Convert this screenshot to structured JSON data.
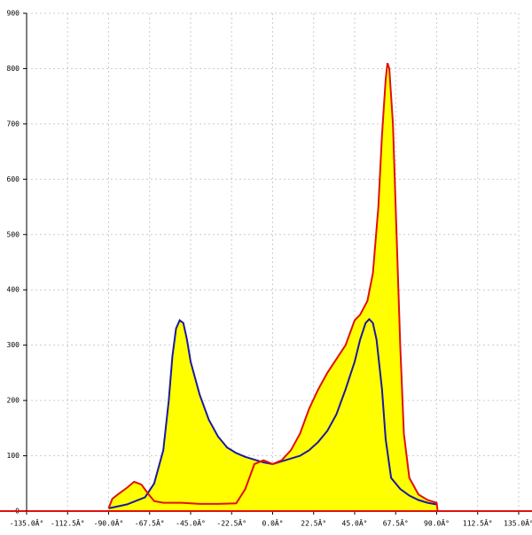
{
  "chart_data": {
    "type": "line",
    "fill": "#ffff00",
    "grid": true,
    "xlim": [
      -135,
      135
    ],
    "ylim": [
      0,
      900
    ],
    "xticks": [
      {
        "value": -135,
        "label": "-135.0Â°"
      },
      {
        "value": -112.5,
        "label": "-112.5Â°"
      },
      {
        "value": -90,
        "label": "-90.0Â°"
      },
      {
        "value": -67.5,
        "label": "-67.5Â°"
      },
      {
        "value": -45,
        "label": "-45.0Â°"
      },
      {
        "value": -22.5,
        "label": "-22.5Â°"
      },
      {
        "value": 0,
        "label": "0.0Â°"
      },
      {
        "value": 22.5,
        "label": "22.5Â°"
      },
      {
        "value": 45,
        "label": "45.0Â°"
      },
      {
        "value": 67.5,
        "label": "67.5Â°"
      },
      {
        "value": 90,
        "label": "90.0Â°"
      },
      {
        "value": 112.5,
        "label": "112.5Â°"
      },
      {
        "value": 135,
        "label": "135.0Â°"
      }
    ],
    "yticks": [
      0,
      100,
      200,
      300,
      400,
      500,
      600,
      700,
      800,
      900
    ],
    "series": [
      {
        "color": "#1a1aa0",
        "x": [
          -90,
          -80,
          -70,
          -65,
          -60,
          -57,
          -55,
          -53,
          -51,
          -49,
          -47,
          -45,
          -40,
          -35,
          -30,
          -25,
          -20,
          -15,
          -10,
          -5,
          0,
          5,
          10,
          15,
          20,
          25,
          30,
          35,
          40,
          45,
          48,
          51,
          53,
          55,
          57,
          60,
          62,
          65,
          70,
          75,
          80,
          85,
          90
        ],
        "values": [
          5,
          12,
          25,
          50,
          110,
          200,
          280,
          330,
          345,
          340,
          310,
          270,
          210,
          165,
          135,
          115,
          105,
          98,
          93,
          88,
          85,
          90,
          95,
          100,
          110,
          125,
          145,
          175,
          220,
          270,
          310,
          340,
          347,
          340,
          310,
          220,
          130,
          60,
          40,
          28,
          20,
          15,
          12
        ]
      },
      {
        "color": "#e01010",
        "x": [
          -90,
          -88,
          -85,
          -80,
          -76,
          -72,
          -68,
          -65,
          -60,
          -50,
          -40,
          -30,
          -20,
          -15,
          -10,
          -5,
          0,
          5,
          10,
          15,
          20,
          25,
          30,
          35,
          40,
          45,
          48,
          52,
          55,
          58,
          60,
          62,
          63,
          64,
          66,
          68,
          70,
          72,
          75,
          80,
          85,
          90,
          90.5
        ],
        "values": [
          5,
          22,
          30,
          42,
          53,
          48,
          30,
          18,
          15,
          15,
          13,
          13,
          14,
          40,
          85,
          92,
          85,
          92,
          110,
          140,
          185,
          220,
          250,
          275,
          300,
          345,
          355,
          380,
          430,
          550,
          680,
          780,
          810,
          800,
          700,
          500,
          300,
          140,
          60,
          30,
          20,
          15,
          0
        ]
      }
    ]
  }
}
